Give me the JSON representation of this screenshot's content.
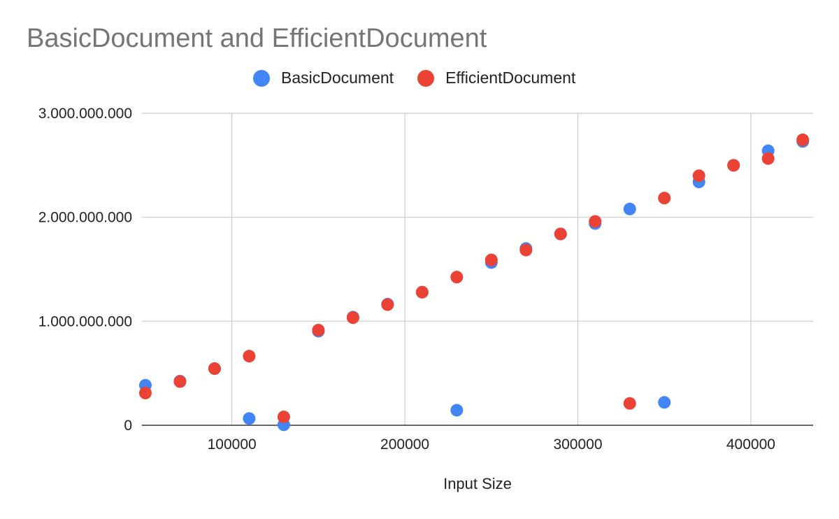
{
  "chart_data": {
    "type": "scatter",
    "title": "BasicDocument and EfficientDocument",
    "xlabel": "Input Size",
    "ylabel": "",
    "xlim": [
      48000,
      436000
    ],
    "ylim": [
      0,
      3000000000
    ],
    "x_ticks": [
      100000,
      200000,
      300000,
      400000
    ],
    "x_tick_labels": [
      "100000",
      "200000",
      "300000",
      "400000"
    ],
    "y_ticks": [
      0,
      1000000000,
      2000000000,
      3000000000
    ],
    "y_tick_labels": [
      "0",
      "1.000.000.000",
      "2.000.000.000",
      "3.000.000.000"
    ],
    "grid": true,
    "legend_position": "top",
    "series": [
      {
        "name": "BasicDocument",
        "color": "#4285f4",
        "points": [
          [
            50000,
            385000000
          ],
          [
            70000,
            425000000
          ],
          [
            90000,
            545000000
          ],
          [
            110000,
            65000000
          ],
          [
            130000,
            5000000
          ],
          [
            150000,
            905000000
          ],
          [
            170000,
            1040000000
          ],
          [
            190000,
            1165000000
          ],
          [
            210000,
            1280000000
          ],
          [
            230000,
            145000000
          ],
          [
            250000,
            1565000000
          ],
          [
            270000,
            1700000000
          ],
          [
            290000,
            1840000000
          ],
          [
            310000,
            1940000000
          ],
          [
            330000,
            2080000000
          ],
          [
            350000,
            220000000
          ],
          [
            370000,
            2340000000
          ],
          [
            390000,
            2500000000
          ],
          [
            410000,
            2640000000
          ],
          [
            430000,
            2730000000
          ]
        ]
      },
      {
        "name": "EfficientDocument",
        "color": "#ea4335",
        "points": [
          [
            50000,
            310000000
          ],
          [
            70000,
            420000000
          ],
          [
            90000,
            545000000
          ],
          [
            110000,
            665000000
          ],
          [
            130000,
            80000000
          ],
          [
            150000,
            915000000
          ],
          [
            170000,
            1035000000
          ],
          [
            190000,
            1160000000
          ],
          [
            210000,
            1280000000
          ],
          [
            230000,
            1425000000
          ],
          [
            250000,
            1590000000
          ],
          [
            270000,
            1685000000
          ],
          [
            290000,
            1840000000
          ],
          [
            310000,
            1960000000
          ],
          [
            330000,
            210000000
          ],
          [
            350000,
            2185000000
          ],
          [
            370000,
            2400000000
          ],
          [
            390000,
            2500000000
          ],
          [
            410000,
            2565000000
          ],
          [
            430000,
            2745000000
          ]
        ]
      }
    ]
  }
}
